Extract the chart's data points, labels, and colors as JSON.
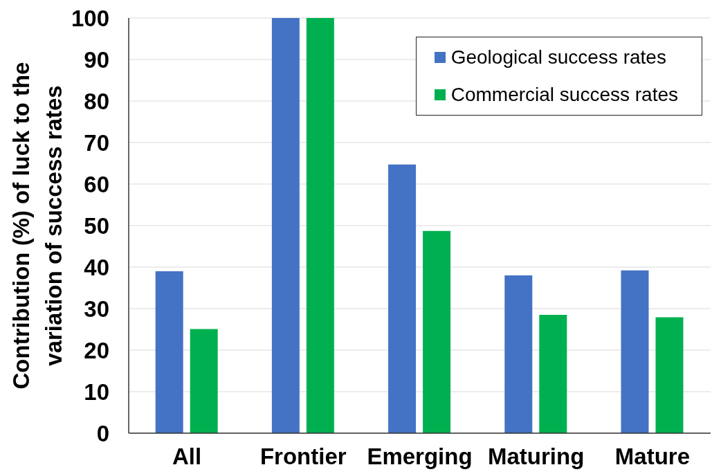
{
  "chart_data": {
    "type": "bar",
    "ylabel": "Contribution (%) of luck to the variation of success rates",
    "categories": [
      "All",
      "Frontier",
      "Emerging",
      "Maturing",
      "Mature"
    ],
    "series": [
      {
        "name": "Geological success rates",
        "color": "#4472c4",
        "values": [
          39.0,
          100,
          64.7,
          38.0,
          39.2
        ]
      },
      {
        "name": "Commercial success rates",
        "color": "#00b050",
        "values": [
          25.1,
          100,
          48.7,
          28.5,
          27.9
        ]
      }
    ],
    "ylim": [
      0,
      100
    ],
    "yticks": [
      0,
      10,
      20,
      30,
      40,
      50,
      60,
      70,
      80,
      90,
      100
    ],
    "grid": "y",
    "legend": "top right"
  }
}
